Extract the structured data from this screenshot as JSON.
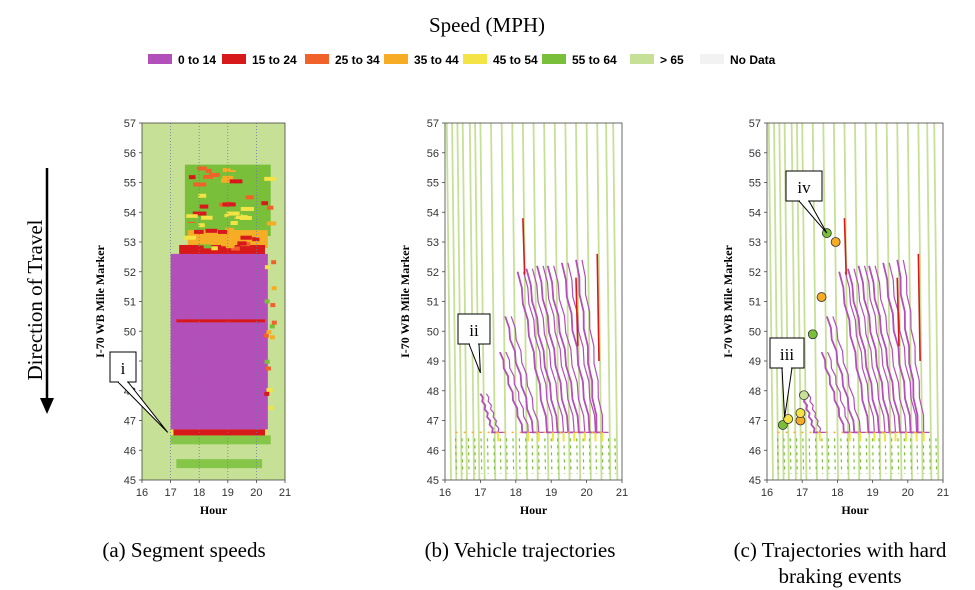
{
  "legend": {
    "title": "Speed (MPH)",
    "items": [
      {
        "label": "0 to 14",
        "color": "#b24fb8"
      },
      {
        "label": "15 to 24",
        "color": "#d7191c"
      },
      {
        "label": "25 to 34",
        "color": "#f0622a"
      },
      {
        "label": "35 to 44",
        "color": "#f6ad25"
      },
      {
        "label": "45 to 54",
        "color": "#f3e345"
      },
      {
        "label": "55 to 64",
        "color": "#79bf3a"
      },
      {
        "label": "> 65",
        "color": "#c6e096"
      },
      {
        "label": "No Data",
        "color": "#f2f2f2"
      }
    ]
  },
  "direction_label": "Direction of Travel",
  "chart_data": [
    {
      "type": "heatmap",
      "caption": "(a) Segment speeds",
      "xlabel": "Hour",
      "ylabel": "I-70 WB Mile Marker",
      "xlim": [
        16,
        21
      ],
      "ylim": [
        45,
        57
      ],
      "xticks": [
        16,
        17,
        18,
        19,
        20,
        21
      ],
      "yticks": [
        45,
        46,
        47,
        48,
        49,
        50,
        51,
        52,
        53,
        54,
        55,
        56,
        57
      ],
      "background_speed": "> 65",
      "regions": [
        {
          "speed": "0 to 14",
          "x": [
            17.0,
            20.4
          ],
          "y": [
            46.7,
            52.6
          ]
        },
        {
          "speed": "15 to 24",
          "x": [
            17.3,
            20.3
          ],
          "y": [
            52.4,
            52.9
          ]
        },
        {
          "speed": "35 to 44",
          "x": [
            17.6,
            20.4
          ],
          "y": [
            52.8,
            53.4
          ]
        },
        {
          "speed": "55 to 64",
          "x": [
            17.5,
            20.5
          ],
          "y": [
            53.2,
            55.6
          ]
        }
      ],
      "annotations": [
        {
          "label": "i",
          "x": 16.9,
          "y": 46.6
        }
      ]
    },
    {
      "type": "line",
      "caption": "(b) Vehicle trajectories",
      "xlabel": "Hour",
      "ylabel": "I-70 WB Mile Marker",
      "xlim": [
        16,
        21
      ],
      "ylim": [
        45,
        57
      ],
      "xticks": [
        16,
        17,
        18,
        19,
        20,
        21
      ],
      "yticks": [
        45,
        46,
        47,
        48,
        49,
        50,
        51,
        52,
        53,
        54,
        55,
        56,
        57
      ],
      "free_flow_starts": [
        16.05,
        16.2,
        16.35,
        16.5,
        16.7,
        16.85,
        17.0,
        17.3,
        17.6,
        17.9,
        18.2,
        18.5,
        18.8,
        19.1,
        19.4,
        19.7,
        20.0,
        20.3,
        20.55,
        20.75
      ],
      "congested_trajectories": [
        {
          "start": [
            17.0,
            47.9
          ],
          "end": [
            17.35,
            46.6
          ]
        },
        {
          "start": [
            17.55,
            49.3
          ],
          "end": [
            18.2,
            46.6
          ]
        },
        {
          "start": [
            17.7,
            50.5
          ],
          "end": [
            18.5,
            46.6
          ]
        },
        {
          "start": [
            18.05,
            52.0
          ],
          "end": [
            18.9,
            46.6
          ]
        },
        {
          "start": [
            18.3,
            52.1
          ],
          "end": [
            19.2,
            46.6
          ]
        },
        {
          "start": [
            18.6,
            52.2
          ],
          "end": [
            19.5,
            46.6
          ]
        },
        {
          "start": [
            18.9,
            52.2
          ],
          "end": [
            19.8,
            46.6
          ]
        },
        {
          "start": [
            19.3,
            52.3
          ],
          "end": [
            20.1,
            46.6
          ]
        },
        {
          "start": [
            19.7,
            52.4
          ],
          "end": [
            20.3,
            46.6
          ]
        }
      ],
      "annotations": [
        {
          "label": "ii",
          "x": 17.0,
          "y": 48.6
        }
      ]
    },
    {
      "type": "line",
      "caption": "(c) Trajectories with hard braking events",
      "xlabel": "Hour",
      "ylabel": "I-70 WB Mile Marker",
      "xlim": [
        16,
        21
      ],
      "ylim": [
        45,
        57
      ],
      "xticks": [
        16,
        17,
        18,
        19,
        20,
        21
      ],
      "yticks": [
        45,
        46,
        47,
        48,
        49,
        50,
        51,
        52,
        53,
        54,
        55,
        56,
        57
      ],
      "braking_events": [
        {
          "x": 17.7,
          "y": 53.3,
          "speed": "55 to 64"
        },
        {
          "x": 17.95,
          "y": 53.0,
          "speed": "35 to 44"
        },
        {
          "x": 17.55,
          "y": 51.15,
          "speed": "35 to 44"
        },
        {
          "x": 17.3,
          "y": 49.9,
          "speed": "55 to 64"
        },
        {
          "x": 16.45,
          "y": 46.85,
          "speed": "55 to 64"
        },
        {
          "x": 16.6,
          "y": 47.05,
          "speed": "45 to 54"
        },
        {
          "x": 16.95,
          "y": 47.0,
          "speed": "35 to 44"
        },
        {
          "x": 16.95,
          "y": 47.25,
          "speed": "45 to 54"
        },
        {
          "x": 17.05,
          "y": 47.85,
          "speed": "> 65"
        }
      ],
      "annotations": [
        {
          "label": "iv",
          "x": 17.7,
          "y": 53.3
        },
        {
          "label": "iii",
          "x": 16.5,
          "y": 47.1
        }
      ]
    }
  ]
}
